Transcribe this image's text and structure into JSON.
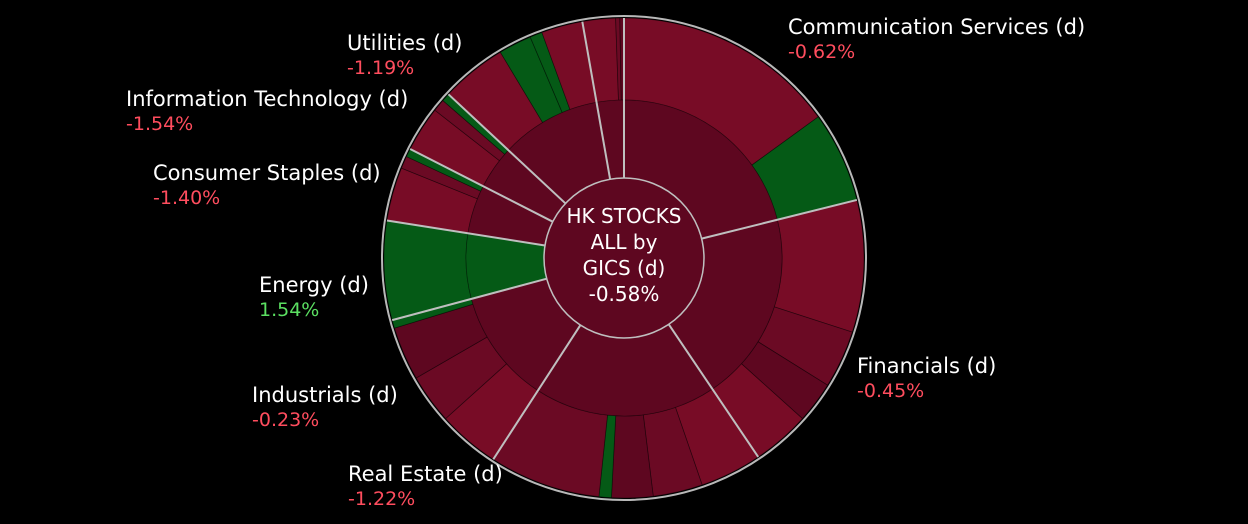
{
  "chart_data": {
    "type": "sunburst",
    "title": "HK STOCKS ALL by GICS (d)",
    "center": {
      "lines": [
        "HK STOCKS",
        "ALL by",
        "GICS (d)"
      ],
      "value": "-0.58%"
    },
    "colors": {
      "neg_dark": "#5e0720",
      "neg_mid": "#6b0a24",
      "neg_bright": "#780c26",
      "pos": "#055a16",
      "pos_label": "#5be062",
      "neg_label": "#ff4d5e",
      "separator": "#bfbfbf",
      "rim": "#b8b8b8"
    },
    "sectors": [
      {
        "name": "Communication Services (d)",
        "change": "-0.62%",
        "change_value": -0.62,
        "start_deg": 0,
        "end_deg": 76,
        "outer": [
          {
            "sweep": 54,
            "sign": "neg"
          },
          {
            "sweep": 22,
            "sign": "pos"
          }
        ]
      },
      {
        "name": "Financials (d)",
        "change": "-0.45%",
        "change_value": -0.45,
        "start_deg": 76,
        "end_deg": 146,
        "outer": [
          {
            "sweep": 32,
            "sign": "neg"
          },
          {
            "sweep": 14,
            "sign": "neg"
          },
          {
            "sweep": 10,
            "sign": "neg"
          },
          {
            "sweep": 14,
            "sign": "neg"
          }
        ]
      },
      {
        "name": "Real Estate (d)",
        "change": "-1.22%",
        "change_value": -1.22,
        "start_deg": 146,
        "end_deg": 213,
        "outer": [
          {
            "sweep": 15,
            "sign": "neg"
          },
          {
            "sweep": 12,
            "sign": "neg"
          },
          {
            "sweep": 10,
            "sign": "neg"
          },
          {
            "sweep": 3,
            "sign": "pos"
          },
          {
            "sweep": 27,
            "sign": "neg"
          }
        ]
      },
      {
        "name": "Industrials (d)",
        "change": "-0.23%",
        "change_value": -0.23,
        "start_deg": 213,
        "end_deg": 255,
        "outer": [
          {
            "sweep": 15,
            "sign": "neg"
          },
          {
            "sweep": 12,
            "sign": "neg"
          },
          {
            "sweep": 13,
            "sign": "neg"
          },
          {
            "sweep": 2,
            "sign": "pos"
          }
        ]
      },
      {
        "name": "Energy (d)",
        "change": "1.54%",
        "change_value": 1.54,
        "start_deg": 255,
        "end_deg": 279,
        "outer": [
          {
            "sweep": 24,
            "sign": "pos"
          }
        ]
      },
      {
        "name": "Consumer Staples (d)",
        "change": "-1.40%",
        "change_value": -1.4,
        "start_deg": 279,
        "end_deg": 297,
        "outer": [
          {
            "sweep": 13,
            "sign": "neg"
          },
          {
            "sweep": 3,
            "sign": "neg"
          },
          {
            "sweep": 2,
            "sign": "pos"
          }
        ]
      },
      {
        "name": "Information Technology (d)",
        "change": "-1.54%",
        "change_value": -1.54,
        "start_deg": 297,
        "end_deg": 313,
        "outer": [
          {
            "sweep": 11,
            "sign": "neg"
          },
          {
            "sweep": 3,
            "sign": "neg"
          },
          {
            "sweep": 2,
            "sign": "pos"
          }
        ]
      },
      {
        "name": "Utilities (d)",
        "change": "-1.19%",
        "change_value": -1.19,
        "start_deg": 313,
        "end_deg": 350,
        "outer": [
          {
            "sweep": 16,
            "sign": "neg"
          },
          {
            "sweep": 8,
            "sign": "pos"
          },
          {
            "sweep": 3,
            "sign": "pos"
          },
          {
            "sweep": 10,
            "sign": "neg"
          }
        ]
      },
      {
        "name": "",
        "change": "",
        "change_value": null,
        "start_deg": 350,
        "end_deg": 360,
        "outer": [
          {
            "sweep": 8,
            "sign": "neg"
          },
          {
            "sweep": 1,
            "sign": "neg"
          },
          {
            "sweep": 1,
            "sign": "neg"
          }
        ]
      }
    ]
  }
}
